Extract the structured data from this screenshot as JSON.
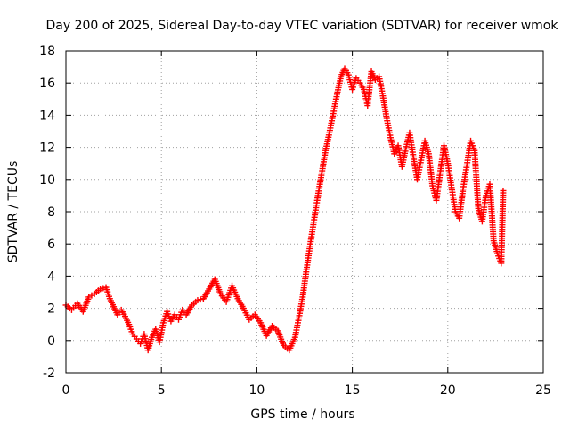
{
  "chart_data": {
    "type": "scatter",
    "title": "Day 200 of 2025, Sidereal Day-to-day VTEC variation (SDTVAR) for receiver wmok",
    "xlabel": "GPS time / hours",
    "ylabel": "SDTVAR / TECUs",
    "xlim": [
      0,
      25
    ],
    "ylim": [
      -2,
      18
    ],
    "xticks": [
      "0",
      "5",
      "10",
      "15",
      "20",
      "25"
    ],
    "yticks": [
      "-2",
      "0",
      "2",
      "4",
      "6",
      "8",
      "10",
      "12",
      "14",
      "16",
      "18"
    ],
    "grid": true,
    "marker": "+",
    "color": "#ff0000",
    "series": [
      {
        "name": "SDTVAR",
        "points": [
          [
            0.0,
            2.2
          ],
          [
            0.3,
            1.9
          ],
          [
            0.6,
            2.3
          ],
          [
            0.9,
            1.8
          ],
          [
            1.2,
            2.7
          ],
          [
            1.5,
            2.9
          ],
          [
            1.8,
            3.2
          ],
          [
            2.1,
            3.3
          ],
          [
            2.3,
            2.6
          ],
          [
            2.5,
            2.1
          ],
          [
            2.7,
            1.6
          ],
          [
            2.9,
            1.9
          ],
          [
            3.1,
            1.5
          ],
          [
            3.3,
            1.0
          ],
          [
            3.5,
            0.4
          ],
          [
            3.7,
            0.1
          ],
          [
            3.9,
            -0.2
          ],
          [
            4.1,
            0.4
          ],
          [
            4.3,
            -0.6
          ],
          [
            4.5,
            0.2
          ],
          [
            4.7,
            0.7
          ],
          [
            4.9,
            -0.1
          ],
          [
            5.1,
            1.1
          ],
          [
            5.3,
            1.8
          ],
          [
            5.5,
            1.2
          ],
          [
            5.7,
            1.6
          ],
          [
            5.9,
            1.3
          ],
          [
            6.1,
            1.9
          ],
          [
            6.3,
            1.6
          ],
          [
            6.6,
            2.2
          ],
          [
            6.9,
            2.5
          ],
          [
            7.2,
            2.6
          ],
          [
            7.5,
            3.2
          ],
          [
            7.8,
            3.8
          ],
          [
            8.1,
            2.9
          ],
          [
            8.4,
            2.4
          ],
          [
            8.7,
            3.4
          ],
          [
            9.0,
            2.6
          ],
          [
            9.3,
            2.0
          ],
          [
            9.6,
            1.3
          ],
          [
            9.9,
            1.6
          ],
          [
            10.2,
            1.1
          ],
          [
            10.5,
            0.3
          ],
          [
            10.8,
            0.9
          ],
          [
            11.1,
            0.6
          ],
          [
            11.4,
            -0.3
          ],
          [
            11.7,
            -0.6
          ],
          [
            12.0,
            0.2
          ],
          [
            12.2,
            1.4
          ],
          [
            12.4,
            2.7
          ],
          [
            12.6,
            4.4
          ],
          [
            12.8,
            6.0
          ],
          [
            13.0,
            7.5
          ],
          [
            13.2,
            9.0
          ],
          [
            13.4,
            10.4
          ],
          [
            13.6,
            11.8
          ],
          [
            13.8,
            12.9
          ],
          [
            14.0,
            14.1
          ],
          [
            14.2,
            15.3
          ],
          [
            14.4,
            16.4
          ],
          [
            14.6,
            16.9
          ],
          [
            14.8,
            16.5
          ],
          [
            15.0,
            15.6
          ],
          [
            15.2,
            16.3
          ],
          [
            15.4,
            16.0
          ],
          [
            15.6,
            15.6
          ],
          [
            15.8,
            14.6
          ],
          [
            16.0,
            16.7
          ],
          [
            16.2,
            16.2
          ],
          [
            16.4,
            16.4
          ],
          [
            16.6,
            15.2
          ],
          [
            16.8,
            13.8
          ],
          [
            17.0,
            12.6
          ],
          [
            17.2,
            11.6
          ],
          [
            17.4,
            12.1
          ],
          [
            17.6,
            10.8
          ],
          [
            17.8,
            11.9
          ],
          [
            18.0,
            12.9
          ],
          [
            18.2,
            11.4
          ],
          [
            18.4,
            10.0
          ],
          [
            18.6,
            11.2
          ],
          [
            18.8,
            12.4
          ],
          [
            19.0,
            11.6
          ],
          [
            19.2,
            9.6
          ],
          [
            19.4,
            8.7
          ],
          [
            19.6,
            10.4
          ],
          [
            19.8,
            12.1
          ],
          [
            20.0,
            11.0
          ],
          [
            20.2,
            9.5
          ],
          [
            20.4,
            8.0
          ],
          [
            20.6,
            7.6
          ],
          [
            20.8,
            9.4
          ],
          [
            21.0,
            10.9
          ],
          [
            21.2,
            12.4
          ],
          [
            21.4,
            11.8
          ],
          [
            21.6,
            8.2
          ],
          [
            21.8,
            7.4
          ],
          [
            22.0,
            9.0
          ],
          [
            22.2,
            9.7
          ],
          [
            22.4,
            6.2
          ],
          [
            22.6,
            5.4
          ],
          [
            22.8,
            4.8
          ],
          [
            22.9,
            9.3
          ]
        ]
      }
    ]
  }
}
